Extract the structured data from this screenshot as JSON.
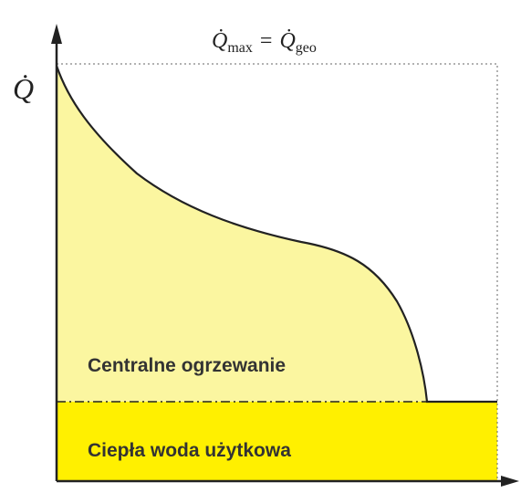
{
  "top_label": {
    "q1": "Q̇",
    "sub1": "max",
    "eq": "=",
    "q2": "Q̇",
    "sub2": "geo"
  },
  "axis_label": "Q̇",
  "regions": {
    "upper": "Centralne ogrzewanie",
    "lower": "Ciepła woda użytkowa"
  }
}
